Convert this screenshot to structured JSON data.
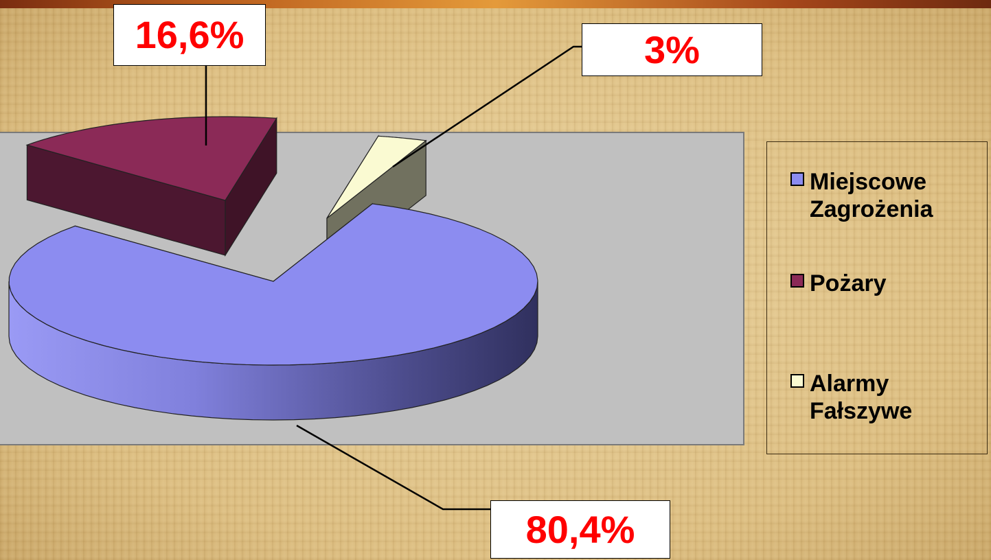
{
  "chart_data": {
    "type": "pie",
    "title": "",
    "slices": [
      {
        "name": "Miejscowe Zagrożenia",
        "legend_label": "Miejscowe\nZagrożenia",
        "value": 80.4,
        "label": "80,4%",
        "color": "#8c8cf0"
      },
      {
        "name": "Pożary",
        "legend_label": "Pożary",
        "value": 16.6,
        "label": "16,6%",
        "color": "#8b2a57"
      },
      {
        "name": "Alarmy Fałszywe",
        "legend_label": "Alarmy\nFałszywe",
        "value": 3.0,
        "label": "3%",
        "color": "#fafad2"
      }
    ],
    "legend_position": "right",
    "style": "3d-exploded"
  },
  "colors": {
    "plot_area": "#c0c0c0",
    "label_text": "#ff0000",
    "background": "#e3c88f"
  }
}
